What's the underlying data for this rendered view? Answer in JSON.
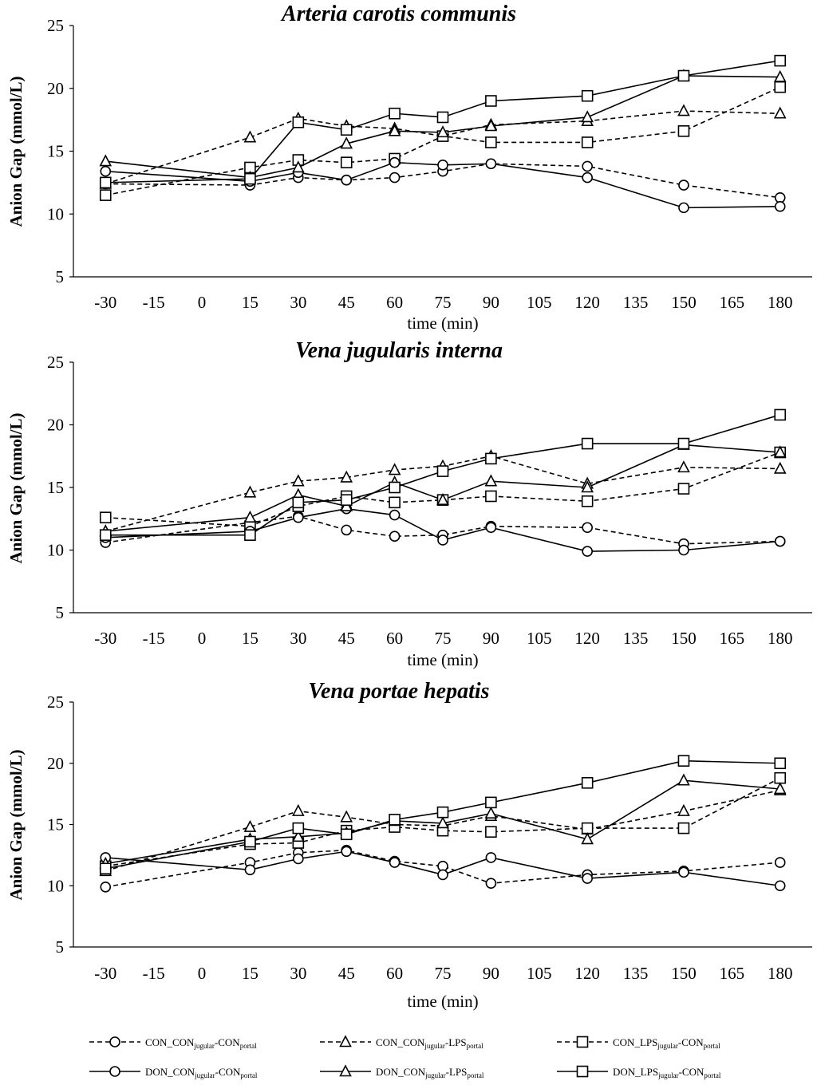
{
  "chart_data": [
    {
      "type": "line",
      "title": "Arteria carotis communis",
      "xlabel": "time (min)",
      "ylabel": "Anion Gap  (mmol/L)",
      "ylim": [
        5,
        25
      ],
      "yticks": [
        "5",
        "10",
        "15",
        "20",
        "25"
      ],
      "xlim": [
        -40,
        190
      ],
      "xticks": [
        "-30",
        "-15",
        "0",
        "15",
        "30",
        "45",
        "60",
        "75",
        "90",
        "105",
        "120",
        "135",
        "150",
        "165",
        "180"
      ],
      "x": [
        -30,
        15,
        30,
        45,
        60,
        75,
        90,
        120,
        150,
        180
      ],
      "series": [
        {
          "name": "CON_CON-CON",
          "values": [
            12.4,
            12.3,
            12.9,
            12.7,
            12.9,
            13.4,
            14.0,
            13.8,
            12.3,
            11.3
          ]
        },
        {
          "name": "CON_CON-LPS",
          "values": [
            12.4,
            16.1,
            17.6,
            17.0,
            16.8,
            16.2,
            17.1,
            17.4,
            18.2,
            18.0
          ]
        },
        {
          "name": "CON_LPS-CON",
          "values": [
            11.5,
            13.7,
            14.3,
            14.1,
            14.4,
            16.2,
            15.7,
            15.7,
            16.6,
            20.1
          ]
        },
        {
          "name": "DON_CON-CON",
          "values": [
            13.4,
            12.6,
            13.3,
            12.7,
            14.1,
            13.9,
            14.0,
            12.9,
            10.5,
            10.6
          ]
        },
        {
          "name": "DON_CON-LPS",
          "values": [
            14.2,
            12.9,
            13.7,
            15.6,
            16.6,
            16.5,
            17.0,
            17.7,
            21.0,
            20.9
          ]
        },
        {
          "name": "DON_LPS-CON",
          "values": [
            12.5,
            12.8,
            17.3,
            16.7,
            18.0,
            17.7,
            19.0,
            19.4,
            21.0,
            22.2
          ]
        }
      ]
    },
    {
      "type": "line",
      "title": "Vena jugularis interna",
      "xlabel": "time (min)",
      "ylabel": "Anion Gap  (mmol/L)",
      "ylim": [
        5,
        25
      ],
      "yticks": [
        "5",
        "10",
        "15",
        "20",
        "25"
      ],
      "xlim": [
        -40,
        190
      ],
      "xticks": [
        "-30",
        "-15",
        "0",
        "15",
        "30",
        "45",
        "60",
        "75",
        "90",
        "105",
        "120",
        "135",
        "150",
        "165",
        "180"
      ],
      "x": [
        -30,
        15,
        30,
        45,
        60,
        75,
        90,
        120,
        150,
        180
      ],
      "series": [
        {
          "name": "CON_CON-CON",
          "values": [
            10.6,
            12.2,
            12.7,
            11.6,
            11.1,
            11.2,
            11.9,
            11.8,
            10.5,
            10.7
          ]
        },
        {
          "name": "CON_CON-LPS",
          "values": [
            11.5,
            14.6,
            15.5,
            15.8,
            16.4,
            16.7,
            17.5,
            15.3,
            16.6,
            16.5
          ]
        },
        {
          "name": "CON_LPS-CON",
          "values": [
            12.6,
            11.9,
            13.5,
            14.3,
            13.8,
            14.0,
            14.3,
            13.9,
            14.9,
            17.8
          ]
        },
        {
          "name": "DON_CON-CON",
          "values": [
            11.0,
            11.5,
            12.6,
            13.3,
            12.8,
            10.8,
            11.8,
            9.9,
            10.0,
            10.7
          ]
        },
        {
          "name": "DON_CON-LPS",
          "values": [
            11.5,
            12.6,
            14.4,
            13.5,
            15.4,
            14.0,
            15.5,
            15.0,
            18.4,
            17.8
          ]
        },
        {
          "name": "DON_LPS-CON",
          "values": [
            11.2,
            11.2,
            13.8,
            14.0,
            15.0,
            16.3,
            17.3,
            18.5,
            18.5,
            20.8
          ]
        }
      ]
    },
    {
      "type": "line",
      "title": "Vena portae hepatis",
      "xlabel": "time (min)",
      "ylabel": "Anion Gap  (mmol/L)",
      "ylim": [
        5,
        25
      ],
      "yticks": [
        "5",
        "10",
        "15",
        "20",
        "25"
      ],
      "xlim": [
        -40,
        190
      ],
      "xticks": [
        "-30",
        "-15",
        "0",
        "15",
        "30",
        "45",
        "60",
        "75",
        "90",
        "105",
        "120",
        "135",
        "150",
        "165",
        "180"
      ],
      "x": [
        -30,
        15,
        30,
        45,
        60,
        75,
        90,
        120,
        150,
        180
      ],
      "series": [
        {
          "name": "CON_CON-CON",
          "values": [
            9.9,
            11.9,
            12.7,
            12.9,
            12.0,
            11.6,
            10.2,
            10.9,
            11.2,
            11.9
          ]
        },
        {
          "name": "CON_CON-LPS",
          "values": [
            11.2,
            14.8,
            16.1,
            15.6,
            15.0,
            14.9,
            15.7,
            14.6,
            16.1,
            17.8
          ]
        },
        {
          "name": "CON_LPS-CON",
          "values": [
            11.6,
            13.4,
            13.5,
            14.5,
            14.8,
            14.5,
            14.4,
            14.7,
            14.7,
            18.8
          ]
        },
        {
          "name": "DON_CON-CON",
          "values": [
            12.3,
            11.3,
            12.2,
            12.8,
            11.9,
            10.9,
            12.3,
            10.6,
            11.1,
            10.0
          ]
        },
        {
          "name": "DON_CON-LPS",
          "values": [
            11.8,
            13.8,
            14.0,
            14.3,
            15.3,
            15.1,
            15.9,
            13.8,
            18.6,
            17.9
          ]
        },
        {
          "name": "DON_LPS-CON",
          "values": [
            11.4,
            13.6,
            14.7,
            14.2,
            15.4,
            16.0,
            16.8,
            18.4,
            20.2,
            20.0
          ]
        }
      ]
    }
  ],
  "legend": [
    {
      "prefix": "CON_CON",
      "mid": "-CON",
      "sub1": "jugular",
      "sub2": "portal",
      "line": "dashed",
      "marker": "circle"
    },
    {
      "prefix": "CON_CON",
      "mid": "-LPS",
      "sub1": "jugular",
      "sub2": "portal",
      "line": "dashed",
      "marker": "triangle"
    },
    {
      "prefix": "CON_LPS",
      "mid": "-CON",
      "sub1": "jugular",
      "sub2": "portal",
      "line": "dashed",
      "marker": "square"
    },
    {
      "prefix": "DON_CON",
      "mid": "-CON",
      "sub1": "jugular",
      "sub2": "portal",
      "line": "solid",
      "marker": "circle"
    },
    {
      "prefix": "DON_CON",
      "mid": "-LPS",
      "sub1": "jugular",
      "sub2": "portal",
      "line": "solid",
      "marker": "triangle"
    },
    {
      "prefix": "DON_LPS",
      "mid": "-CON",
      "sub1": "jugular",
      "sub2": "portal",
      "line": "solid",
      "marker": "square"
    }
  ],
  "colors": {
    "ink": "#000000",
    "marker_fill": "#ffffff",
    "background": "#ffffff"
  }
}
